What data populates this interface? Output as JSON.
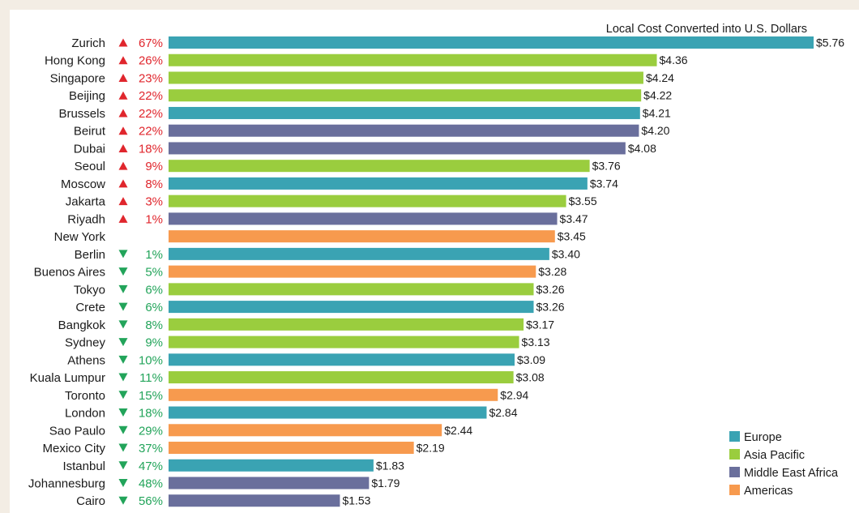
{
  "chart_data": {
    "type": "bar",
    "orientation": "horizontal",
    "title": "Local Cost Converted into U.S. Dollars",
    "value_prefix": "$",
    "xlim": [
      0,
      5.76
    ],
    "grid": false,
    "legend_position": "bottom-right",
    "categories": [
      "Zurich",
      "Hong Kong",
      "Singapore",
      "Beijing",
      "Brussels",
      "Beirut",
      "Dubai",
      "Seoul",
      "Moscow",
      "Jakarta",
      "Riyadh",
      "New York",
      "Berlin",
      "Buenos Aires",
      "Tokyo",
      "Crete",
      "Bangkok",
      "Sydney",
      "Athens",
      "Kuala Lumpur",
      "Toronto",
      "London",
      "Sao Paulo",
      "Mexico City",
      "Istanbul",
      "Johannesburg",
      "Cairo"
    ],
    "values": [
      5.76,
      4.36,
      4.24,
      4.22,
      4.21,
      4.2,
      4.08,
      3.76,
      3.74,
      3.55,
      3.47,
      3.45,
      3.4,
      3.28,
      3.26,
      3.26,
      3.17,
      3.13,
      3.09,
      3.08,
      2.94,
      2.84,
      2.44,
      2.19,
      1.83,
      1.79,
      1.53
    ],
    "value_labels": [
      "$5.76",
      "$4.36",
      "$4.24",
      "$4.22",
      "$4.21",
      "$4.20",
      "$4.08",
      "$3.76",
      "$3.74",
      "$3.55",
      "$3.47",
      "$3.45",
      "$3.40",
      "$3.28",
      "$3.26",
      "$3.26",
      "$3.17",
      "$3.13",
      "$3.09",
      "$3.08",
      "$2.94",
      "$2.84",
      "$2.44",
      "$2.19",
      "$1.83",
      "$1.79",
      "$1.53"
    ],
    "regions": [
      "Europe",
      "Asia Pacific",
      "Asia Pacific",
      "Asia Pacific",
      "Europe",
      "Middle East Africa",
      "Middle East Africa",
      "Asia Pacific",
      "Europe",
      "Asia Pacific",
      "Middle East Africa",
      "Americas",
      "Europe",
      "Americas",
      "Asia Pacific",
      "Europe",
      "Asia Pacific",
      "Asia Pacific",
      "Europe",
      "Asia Pacific",
      "Americas",
      "Europe",
      "Americas",
      "Americas",
      "Europe",
      "Middle East Africa",
      "Middle East Africa"
    ],
    "pct_change_vs_new_york": [
      "67%",
      "26%",
      "23%",
      "22%",
      "22%",
      "22%",
      "18%",
      "9%",
      "8%",
      "3%",
      "1%",
      "",
      "1%",
      "5%",
      "6%",
      "6%",
      "8%",
      "9%",
      "10%",
      "11%",
      "15%",
      "18%",
      "29%",
      "37%",
      "47%",
      "48%",
      "56%"
    ],
    "change_direction": [
      "up",
      "up",
      "up",
      "up",
      "up",
      "up",
      "up",
      "up",
      "up",
      "up",
      "up",
      "none",
      "down",
      "down",
      "down",
      "down",
      "down",
      "down",
      "down",
      "down",
      "down",
      "down",
      "down",
      "down",
      "down",
      "down",
      "down"
    ],
    "legend": [
      {
        "name": "Europe",
        "color": "#3aa3b3"
      },
      {
        "name": "Asia Pacific",
        "color": "#9acd3e"
      },
      {
        "name": "Middle East Africa",
        "color": "#6a6f9c"
      },
      {
        "name": "Americas",
        "color": "#f79a4e"
      }
    ],
    "colors": {
      "up": "#e0262d",
      "down": "#22a45a"
    }
  }
}
